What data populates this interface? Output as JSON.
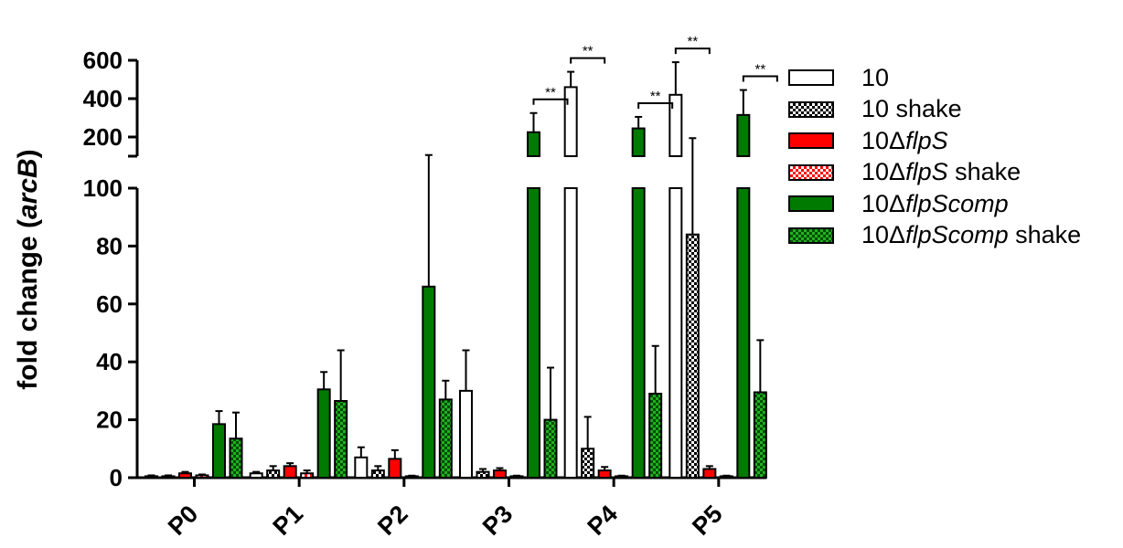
{
  "chart_data": {
    "type": "bar",
    "title": "",
    "ylabel_prefix": "fold change (",
    "ylabel_italic": "arcB",
    "ylabel_suffix": ")",
    "categories": [
      "P0",
      "P1",
      "P2",
      "P3",
      "P4",
      "P5"
    ],
    "y_axis": {
      "broken": true,
      "lower_range": [
        0,
        100
      ],
      "lower_ticks": [
        "0",
        "20",
        "40",
        "60",
        "80",
        "100"
      ],
      "upper_range": [
        100,
        600
      ],
      "upper_ticks": [
        "200",
        "400",
        "600"
      ]
    },
    "legend_position": "right",
    "series": [
      {
        "name": "10",
        "name_parts": [
          {
            "t": "10",
            "i": false
          }
        ],
        "fill": "white",
        "values": [
          0.5,
          1.5,
          7,
          30,
          460,
          420
        ],
        "errors": [
          0.3,
          0.5,
          3.5,
          14,
          80,
          170
        ]
      },
      {
        "name": "10 shake",
        "name_parts": [
          {
            "t": "10 shake",
            "i": false
          }
        ],
        "fill": "checker-black",
        "values": [
          0.5,
          2.5,
          2.5,
          2,
          10,
          84
        ],
        "errors": [
          0.3,
          1.5,
          1.5,
          1,
          11,
          110
        ]
      },
      {
        "name": "10ΔflpS",
        "name_parts": [
          {
            "t": "10Δ",
            "i": false
          },
          {
            "t": "flpS",
            "i": true
          }
        ],
        "fill": "#ff0000",
        "values": [
          1.5,
          4,
          6.5,
          2.5,
          2.5,
          3
        ],
        "errors": [
          0.5,
          1,
          3,
          0.8,
          1.2,
          1
        ]
      },
      {
        "name": "10ΔflpS shake",
        "name_parts": [
          {
            "t": "10Δ",
            "i": false
          },
          {
            "t": "flpS",
            "i": true
          },
          {
            "t": " shake",
            "i": false
          }
        ],
        "fill": "checker-red",
        "values": [
          0.8,
          1.5,
          0.5,
          0.5,
          0.5,
          0.5
        ],
        "errors": [
          0.3,
          1,
          0.2,
          0.2,
          0.2,
          0.2
        ]
      },
      {
        "name": "10ΔflpScomp",
        "name_parts": [
          {
            "t": "10Δ",
            "i": false
          },
          {
            "t": "flpScomp",
            "i": true
          }
        ],
        "fill": "#007a00",
        "values": [
          18.5,
          30.5,
          66,
          225,
          245,
          315
        ],
        "errors": [
          4.5,
          6,
          40,
          100,
          60,
          130
        ]
      },
      {
        "name": "10ΔflpScomp shake",
        "name_parts": [
          {
            "t": "10Δ",
            "i": false
          },
          {
            "t": "flpScomp",
            "i": true
          },
          {
            "t": " shake",
            "i": false
          }
        ],
        "fill": "checker-green",
        "values": [
          13.5,
          26.5,
          27,
          20,
          29,
          29.5
        ],
        "errors": [
          9,
          17.5,
          6.5,
          18,
          16.5,
          18
        ]
      }
    ],
    "significance": [
      {
        "category": "P3",
        "label": "**"
      },
      {
        "category": "P4",
        "label": "**"
      },
      {
        "category": "P4",
        "label": "**"
      },
      {
        "category": "P5",
        "label": "**"
      },
      {
        "category": "P5",
        "label": "**"
      }
    ]
  }
}
